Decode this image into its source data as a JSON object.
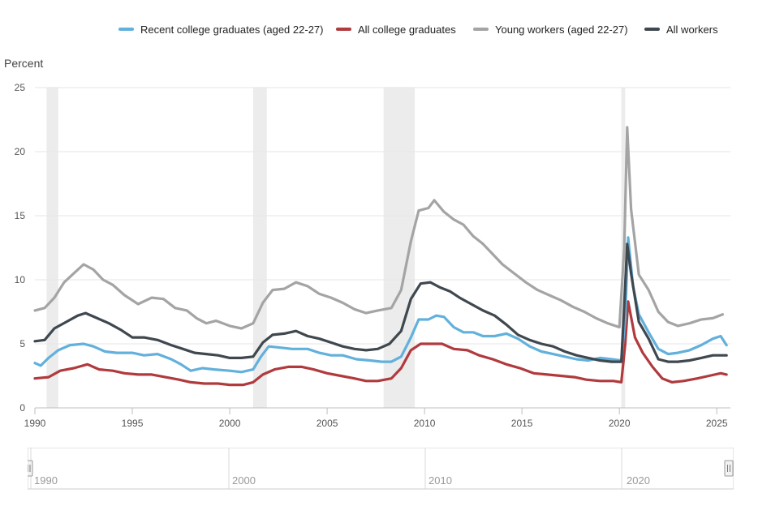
{
  "chart_data": {
    "type": "line",
    "ylabel": "Percent",
    "ylim": [
      0,
      25
    ],
    "yticks": [
      "25",
      "20",
      "15",
      "10",
      "5",
      "0"
    ],
    "xlim": [
      1990,
      2025.7
    ],
    "xticks": [
      "1990",
      "1995",
      "2000",
      "2005",
      "2010",
      "2015",
      "2020",
      "2025"
    ],
    "recessions": [
      [
        1990.6,
        1991.2
      ],
      [
        2001.2,
        2001.9
      ],
      [
        2007.9,
        2009.5
      ],
      [
        2020.1,
        2020.3
      ]
    ],
    "legend_position": "top",
    "series": [
      {
        "name": "Recent college graduates (aged 22-27)",
        "color": "#62b0dc",
        "points": [
          [
            1990,
            3.5
          ],
          [
            1990.3,
            3.3
          ],
          [
            1990.7,
            3.9
          ],
          [
            1991.2,
            4.5
          ],
          [
            1991.8,
            4.9
          ],
          [
            1992.5,
            5.0
          ],
          [
            1993,
            4.8
          ],
          [
            1993.6,
            4.4
          ],
          [
            1994.2,
            4.3
          ],
          [
            1995,
            4.3
          ],
          [
            1995.6,
            4.1
          ],
          [
            1996.3,
            4.2
          ],
          [
            1997,
            3.8
          ],
          [
            1997.5,
            3.4
          ],
          [
            1998,
            2.9
          ],
          [
            1998.6,
            3.1
          ],
          [
            1999.2,
            3.0
          ],
          [
            2000,
            2.9
          ],
          [
            2000.6,
            2.8
          ],
          [
            2001.2,
            3.0
          ],
          [
            2001.6,
            4.0
          ],
          [
            2002,
            4.8
          ],
          [
            2002.6,
            4.7
          ],
          [
            2003.2,
            4.6
          ],
          [
            2004,
            4.6
          ],
          [
            2004.6,
            4.3
          ],
          [
            2005.2,
            4.1
          ],
          [
            2005.8,
            4.1
          ],
          [
            2006.5,
            3.8
          ],
          [
            2007.2,
            3.7
          ],
          [
            2007.8,
            3.6
          ],
          [
            2008.3,
            3.6
          ],
          [
            2008.8,
            4.0
          ],
          [
            2009.3,
            5.5
          ],
          [
            2009.7,
            6.9
          ],
          [
            2010.2,
            6.9
          ],
          [
            2010.6,
            7.2
          ],
          [
            2011,
            7.1
          ],
          [
            2011.5,
            6.3
          ],
          [
            2012,
            5.9
          ],
          [
            2012.5,
            5.9
          ],
          [
            2013,
            5.6
          ],
          [
            2013.6,
            5.6
          ],
          [
            2014.2,
            5.8
          ],
          [
            2014.8,
            5.4
          ],
          [
            2015.4,
            4.8
          ],
          [
            2016,
            4.4
          ],
          [
            2016.6,
            4.2
          ],
          [
            2017.2,
            4.0
          ],
          [
            2017.8,
            3.8
          ],
          [
            2018.4,
            3.7
          ],
          [
            2019,
            3.9
          ],
          [
            2019.6,
            3.8
          ],
          [
            2020.1,
            3.7
          ],
          [
            2020.3,
            7.0
          ],
          [
            2020.45,
            13.3
          ],
          [
            2020.7,
            9.5
          ],
          [
            2021,
            7.3
          ],
          [
            2021.5,
            5.9
          ],
          [
            2022,
            4.6
          ],
          [
            2022.5,
            4.2
          ],
          [
            2023,
            4.3
          ],
          [
            2023.6,
            4.5
          ],
          [
            2024.2,
            4.9
          ],
          [
            2024.8,
            5.4
          ],
          [
            2025.2,
            5.6
          ],
          [
            2025.5,
            4.9
          ]
        ]
      },
      {
        "name": "All college graduates",
        "color": "#b03a3d",
        "points": [
          [
            1990,
            2.3
          ],
          [
            1990.7,
            2.4
          ],
          [
            1991.3,
            2.9
          ],
          [
            1992,
            3.1
          ],
          [
            1992.7,
            3.4
          ],
          [
            1993.3,
            3.0
          ],
          [
            1994,
            2.9
          ],
          [
            1994.6,
            2.7
          ],
          [
            1995.3,
            2.6
          ],
          [
            1996,
            2.6
          ],
          [
            1996.7,
            2.4
          ],
          [
            1997.4,
            2.2
          ],
          [
            1998,
            2.0
          ],
          [
            1998.7,
            1.9
          ],
          [
            1999.4,
            1.9
          ],
          [
            2000,
            1.8
          ],
          [
            2000.7,
            1.8
          ],
          [
            2001.2,
            2.0
          ],
          [
            2001.7,
            2.6
          ],
          [
            2002.3,
            3.0
          ],
          [
            2003,
            3.2
          ],
          [
            2003.7,
            3.2
          ],
          [
            2004.3,
            3.0
          ],
          [
            2005,
            2.7
          ],
          [
            2005.7,
            2.5
          ],
          [
            2006.4,
            2.3
          ],
          [
            2007,
            2.1
          ],
          [
            2007.6,
            2.1
          ],
          [
            2008.3,
            2.3
          ],
          [
            2008.8,
            3.1
          ],
          [
            2009.3,
            4.5
          ],
          [
            2009.8,
            5.0
          ],
          [
            2010.4,
            5.0
          ],
          [
            2010.9,
            5.0
          ],
          [
            2011.5,
            4.6
          ],
          [
            2012.2,
            4.5
          ],
          [
            2012.8,
            4.1
          ],
          [
            2013.5,
            3.8
          ],
          [
            2014.2,
            3.4
          ],
          [
            2014.9,
            3.1
          ],
          [
            2015.6,
            2.7
          ],
          [
            2016.3,
            2.6
          ],
          [
            2017,
            2.5
          ],
          [
            2017.7,
            2.4
          ],
          [
            2018.3,
            2.2
          ],
          [
            2019,
            2.1
          ],
          [
            2019.7,
            2.1
          ],
          [
            2020.1,
            2.0
          ],
          [
            2020.3,
            5.0
          ],
          [
            2020.45,
            8.3
          ],
          [
            2020.8,
            5.5
          ],
          [
            2021.2,
            4.3
          ],
          [
            2021.7,
            3.2
          ],
          [
            2022.2,
            2.3
          ],
          [
            2022.7,
            2.0
          ],
          [
            2023.3,
            2.1
          ],
          [
            2024,
            2.3
          ],
          [
            2024.6,
            2.5
          ],
          [
            2025.2,
            2.7
          ],
          [
            2025.5,
            2.6
          ]
        ]
      },
      {
        "name": "Young workers (aged 22-27)",
        "color": "#a4a4a4",
        "points": [
          [
            1990,
            7.6
          ],
          [
            1990.5,
            7.8
          ],
          [
            1991,
            8.6
          ],
          [
            1991.5,
            9.8
          ],
          [
            1992,
            10.5
          ],
          [
            1992.5,
            11.2
          ],
          [
            1993,
            10.8
          ],
          [
            1993.5,
            10.0
          ],
          [
            1994,
            9.6
          ],
          [
            1994.6,
            8.8
          ],
          [
            1995.3,
            8.1
          ],
          [
            1996,
            8.6
          ],
          [
            1996.6,
            8.5
          ],
          [
            1997.2,
            7.8
          ],
          [
            1997.8,
            7.6
          ],
          [
            1998.3,
            7.0
          ],
          [
            1998.8,
            6.6
          ],
          [
            1999.3,
            6.8
          ],
          [
            2000,
            6.4
          ],
          [
            2000.6,
            6.2
          ],
          [
            2001.2,
            6.6
          ],
          [
            2001.7,
            8.2
          ],
          [
            2002.2,
            9.2
          ],
          [
            2002.8,
            9.3
          ],
          [
            2003.4,
            9.8
          ],
          [
            2004,
            9.5
          ],
          [
            2004.6,
            8.9
          ],
          [
            2005.2,
            8.6
          ],
          [
            2005.8,
            8.2
          ],
          [
            2006.4,
            7.7
          ],
          [
            2007,
            7.4
          ],
          [
            2007.6,
            7.6
          ],
          [
            2008.3,
            7.8
          ],
          [
            2008.8,
            9.2
          ],
          [
            2009.3,
            13.0
          ],
          [
            2009.7,
            15.4
          ],
          [
            2010.2,
            15.6
          ],
          [
            2010.5,
            16.2
          ],
          [
            2011,
            15.3
          ],
          [
            2011.5,
            14.7
          ],
          [
            2012,
            14.3
          ],
          [
            2012.5,
            13.4
          ],
          [
            2013,
            12.8
          ],
          [
            2013.5,
            12.0
          ],
          [
            2014,
            11.2
          ],
          [
            2014.6,
            10.5
          ],
          [
            2015.2,
            9.8
          ],
          [
            2015.8,
            9.2
          ],
          [
            2016.4,
            8.8
          ],
          [
            2017,
            8.4
          ],
          [
            2017.6,
            7.9
          ],
          [
            2018.2,
            7.5
          ],
          [
            2018.8,
            7.0
          ],
          [
            2019.4,
            6.6
          ],
          [
            2020,
            6.3
          ],
          [
            2020.25,
            12.5
          ],
          [
            2020.4,
            21.9
          ],
          [
            2020.6,
            15.5
          ],
          [
            2021,
            10.4
          ],
          [
            2021.5,
            9.2
          ],
          [
            2022,
            7.5
          ],
          [
            2022.5,
            6.7
          ],
          [
            2023,
            6.4
          ],
          [
            2023.6,
            6.6
          ],
          [
            2024.2,
            6.9
          ],
          [
            2024.8,
            7.0
          ],
          [
            2025.3,
            7.3
          ]
        ]
      },
      {
        "name": "All workers",
        "color": "#3f474f",
        "points": [
          [
            1990,
            5.2
          ],
          [
            1990.5,
            5.3
          ],
          [
            1991,
            6.2
          ],
          [
            1991.6,
            6.7
          ],
          [
            1992.2,
            7.2
          ],
          [
            1992.6,
            7.4
          ],
          [
            1993.2,
            7.0
          ],
          [
            1993.8,
            6.6
          ],
          [
            1994.4,
            6.1
          ],
          [
            1995,
            5.5
          ],
          [
            1995.6,
            5.5
          ],
          [
            1996.3,
            5.3
          ],
          [
            1997,
            4.9
          ],
          [
            1997.6,
            4.6
          ],
          [
            1998.2,
            4.3
          ],
          [
            1998.8,
            4.2
          ],
          [
            1999.4,
            4.1
          ],
          [
            2000,
            3.9
          ],
          [
            2000.6,
            3.9
          ],
          [
            2001.2,
            4.0
          ],
          [
            2001.7,
            5.1
          ],
          [
            2002.2,
            5.7
          ],
          [
            2002.8,
            5.8
          ],
          [
            2003.4,
            6.0
          ],
          [
            2004,
            5.6
          ],
          [
            2004.6,
            5.4
          ],
          [
            2005.2,
            5.1
          ],
          [
            2005.8,
            4.8
          ],
          [
            2006.4,
            4.6
          ],
          [
            2007,
            4.5
          ],
          [
            2007.6,
            4.6
          ],
          [
            2008.2,
            5.0
          ],
          [
            2008.8,
            6.0
          ],
          [
            2009.3,
            8.5
          ],
          [
            2009.8,
            9.7
          ],
          [
            2010.3,
            9.8
          ],
          [
            2010.8,
            9.4
          ],
          [
            2011.3,
            9.1
          ],
          [
            2011.8,
            8.6
          ],
          [
            2012.4,
            8.1
          ],
          [
            2013,
            7.6
          ],
          [
            2013.6,
            7.2
          ],
          [
            2014.2,
            6.5
          ],
          [
            2014.8,
            5.7
          ],
          [
            2015.4,
            5.3
          ],
          [
            2016,
            5.0
          ],
          [
            2016.6,
            4.8
          ],
          [
            2017.2,
            4.4
          ],
          [
            2017.8,
            4.1
          ],
          [
            2018.4,
            3.9
          ],
          [
            2019,
            3.7
          ],
          [
            2019.6,
            3.6
          ],
          [
            2020.1,
            3.6
          ],
          [
            2020.25,
            8.0
          ],
          [
            2020.4,
            12.8
          ],
          [
            2020.6,
            10.5
          ],
          [
            2021,
            6.7
          ],
          [
            2021.5,
            5.4
          ],
          [
            2022,
            3.8
          ],
          [
            2022.5,
            3.6
          ],
          [
            2023,
            3.6
          ],
          [
            2023.6,
            3.7
          ],
          [
            2024.2,
            3.9
          ],
          [
            2024.8,
            4.1
          ],
          [
            2025.3,
            4.1
          ],
          [
            2025.5,
            4.1
          ]
        ]
      }
    ]
  },
  "navigator": {
    "labels": [
      "1990",
      "2000",
      "2010",
      "2020"
    ]
  }
}
